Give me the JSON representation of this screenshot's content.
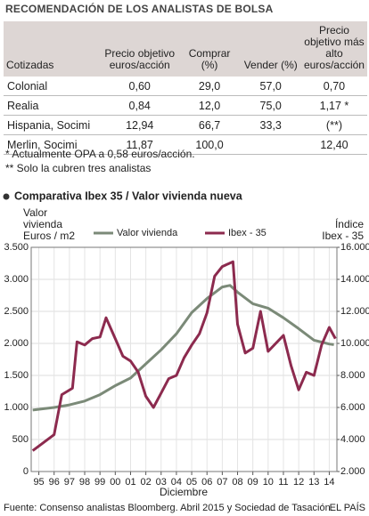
{
  "table": {
    "title": "RECOMENDACIÓN DE LOS ANALISTAS DE BOLSA",
    "header": [
      "Cotizadas",
      "Precio objetivo euros/acción",
      "Comprar (%)",
      "Vender (%)",
      "Precio objetivo más alto euros/acción"
    ],
    "rows": [
      [
        "Colonial",
        "0,60",
        "29,0",
        "57,0",
        "0,70"
      ],
      [
        "Realia",
        "0,84",
        "12,0",
        "75,0",
        "1,17 *"
      ],
      [
        "Hispania, Socimi",
        "12,94",
        "66,7",
        "33,3",
        "(**)"
      ],
      [
        "Merlin, Socimi",
        "11,87",
        "100,0",
        null,
        "12,40"
      ]
    ],
    "notes": [
      "* Actualmente OPA a 0,58 euros/acción.",
      "** Solo la cubren tres analistas"
    ]
  },
  "chart_data": {
    "type": "line",
    "title": "Comparativa Ibex 35 / Valor vivienda nueva",
    "ylabel": [
      "Valor",
      "vivienda",
      "Euros / m2"
    ],
    "y2label": [
      "Índice",
      "Ibex - 35"
    ],
    "xlabel": "Diciembre",
    "source": "Fuente: Consenso analistas Bloomberg. Abril 2015  y Sociedad de Tasación.",
    "credit": "EL PAÍS",
    "xlim": [
      1994.5,
      2014.5
    ],
    "xticks": [
      {
        "value": 1995,
        "label": "95"
      },
      {
        "value": 1996,
        "label": "96"
      },
      {
        "value": 1997,
        "label": "97"
      },
      {
        "value": 1998,
        "label": "98"
      },
      {
        "value": 1999,
        "label": "99"
      },
      {
        "value": 2000,
        "label": "00"
      },
      {
        "value": 2001,
        "label": "01"
      },
      {
        "value": 2002,
        "label": "02"
      },
      {
        "value": 2003,
        "label": "03"
      },
      {
        "value": 2004,
        "label": "04"
      },
      {
        "value": 2005,
        "label": "05"
      },
      {
        "value": 2006,
        "label": "06"
      },
      {
        "value": 2007,
        "label": "07"
      },
      {
        "value": 2008,
        "label": "08"
      },
      {
        "value": 2009,
        "label": "09"
      },
      {
        "value": 2010,
        "label": "10"
      },
      {
        "value": 2011,
        "label": "11"
      },
      {
        "value": 2012,
        "label": "12"
      },
      {
        "value": 2013,
        "label": "13"
      },
      {
        "value": 2014,
        "label": "14"
      }
    ],
    "ylim": [
      0,
      3500
    ],
    "yticks": [
      0,
      {
        "value": 500,
        "label": "500"
      },
      {
        "value": 1000,
        "label": "1.000"
      },
      {
        "value": 1500,
        "label": "1.500"
      },
      {
        "value": 2000,
        "label": "2.000"
      },
      {
        "value": 2500,
        "label": "2.500"
      },
      {
        "value": 3000,
        "label": "3.000"
      },
      {
        "value": 3500,
        "label": "3.500"
      }
    ],
    "y2lim": [
      2000,
      16000
    ],
    "y2ticks": [
      {
        "value": 2000,
        "label": "2.000"
      },
      {
        "value": 4000,
        "label": "4.000"
      },
      {
        "value": 6000,
        "label": "6.000"
      },
      {
        "value": 8000,
        "label": "8.000"
      },
      {
        "value": 10000,
        "label": "10.000"
      },
      {
        "value": 12000,
        "label": "12.000"
      },
      {
        "value": 14000,
        "label": "14.000"
      },
      {
        "value": 16000,
        "label": "16.000"
      }
    ],
    "grid": true,
    "series": [
      {
        "name": "Valor vivienda",
        "color": "#7b8a78",
        "x": [
          1994.6,
          1996,
          1997,
          1998,
          1999,
          2000,
          2001,
          2002,
          2003,
          2004,
          2005,
          2006,
          2007,
          2007.5,
          2008,
          2009,
          2010,
          2011,
          2012,
          2013,
          2014,
          2014.3
        ],
        "values": [
          960,
          1000,
          1040,
          1100,
          1200,
          1340,
          1460,
          1680,
          1900,
          2150,
          2480,
          2700,
          2880,
          2905,
          2800,
          2620,
          2550,
          2400,
          2230,
          2050,
          1990,
          1980
        ]
      },
      {
        "name": "Ibex - 35",
        "color": "#8c2a4e",
        "axis": "y2",
        "x": [
          1994.6,
          1996,
          1996.5,
          1997.2,
          1997.5,
          1998,
          1998.5,
          1999,
          1999.4,
          2000,
          2000.5,
          2001,
          2001.5,
          2002,
          2002.5,
          2003,
          2003.5,
          2004,
          2004.5,
          2005,
          2005.5,
          2006,
          2006.5,
          2007,
          2007.7,
          2008,
          2008.5,
          2009,
          2009.5,
          2010,
          2011,
          2011.5,
          2012,
          2012.5,
          2013,
          2013.5,
          2014,
          2014.4
        ],
        "values": [
          3300,
          4300,
          6800,
          7200,
          10100,
          9900,
          10300,
          10400,
          11600,
          10300,
          9200,
          8900,
          8200,
          6700,
          6000,
          6900,
          7800,
          8000,
          9100,
          9900,
          10600,
          11900,
          14200,
          14800,
          15100,
          11200,
          9400,
          9700,
          12000,
          9500,
          10500,
          8600,
          7100,
          8200,
          8000,
          9900,
          11000,
          10300
        ]
      }
    ]
  }
}
